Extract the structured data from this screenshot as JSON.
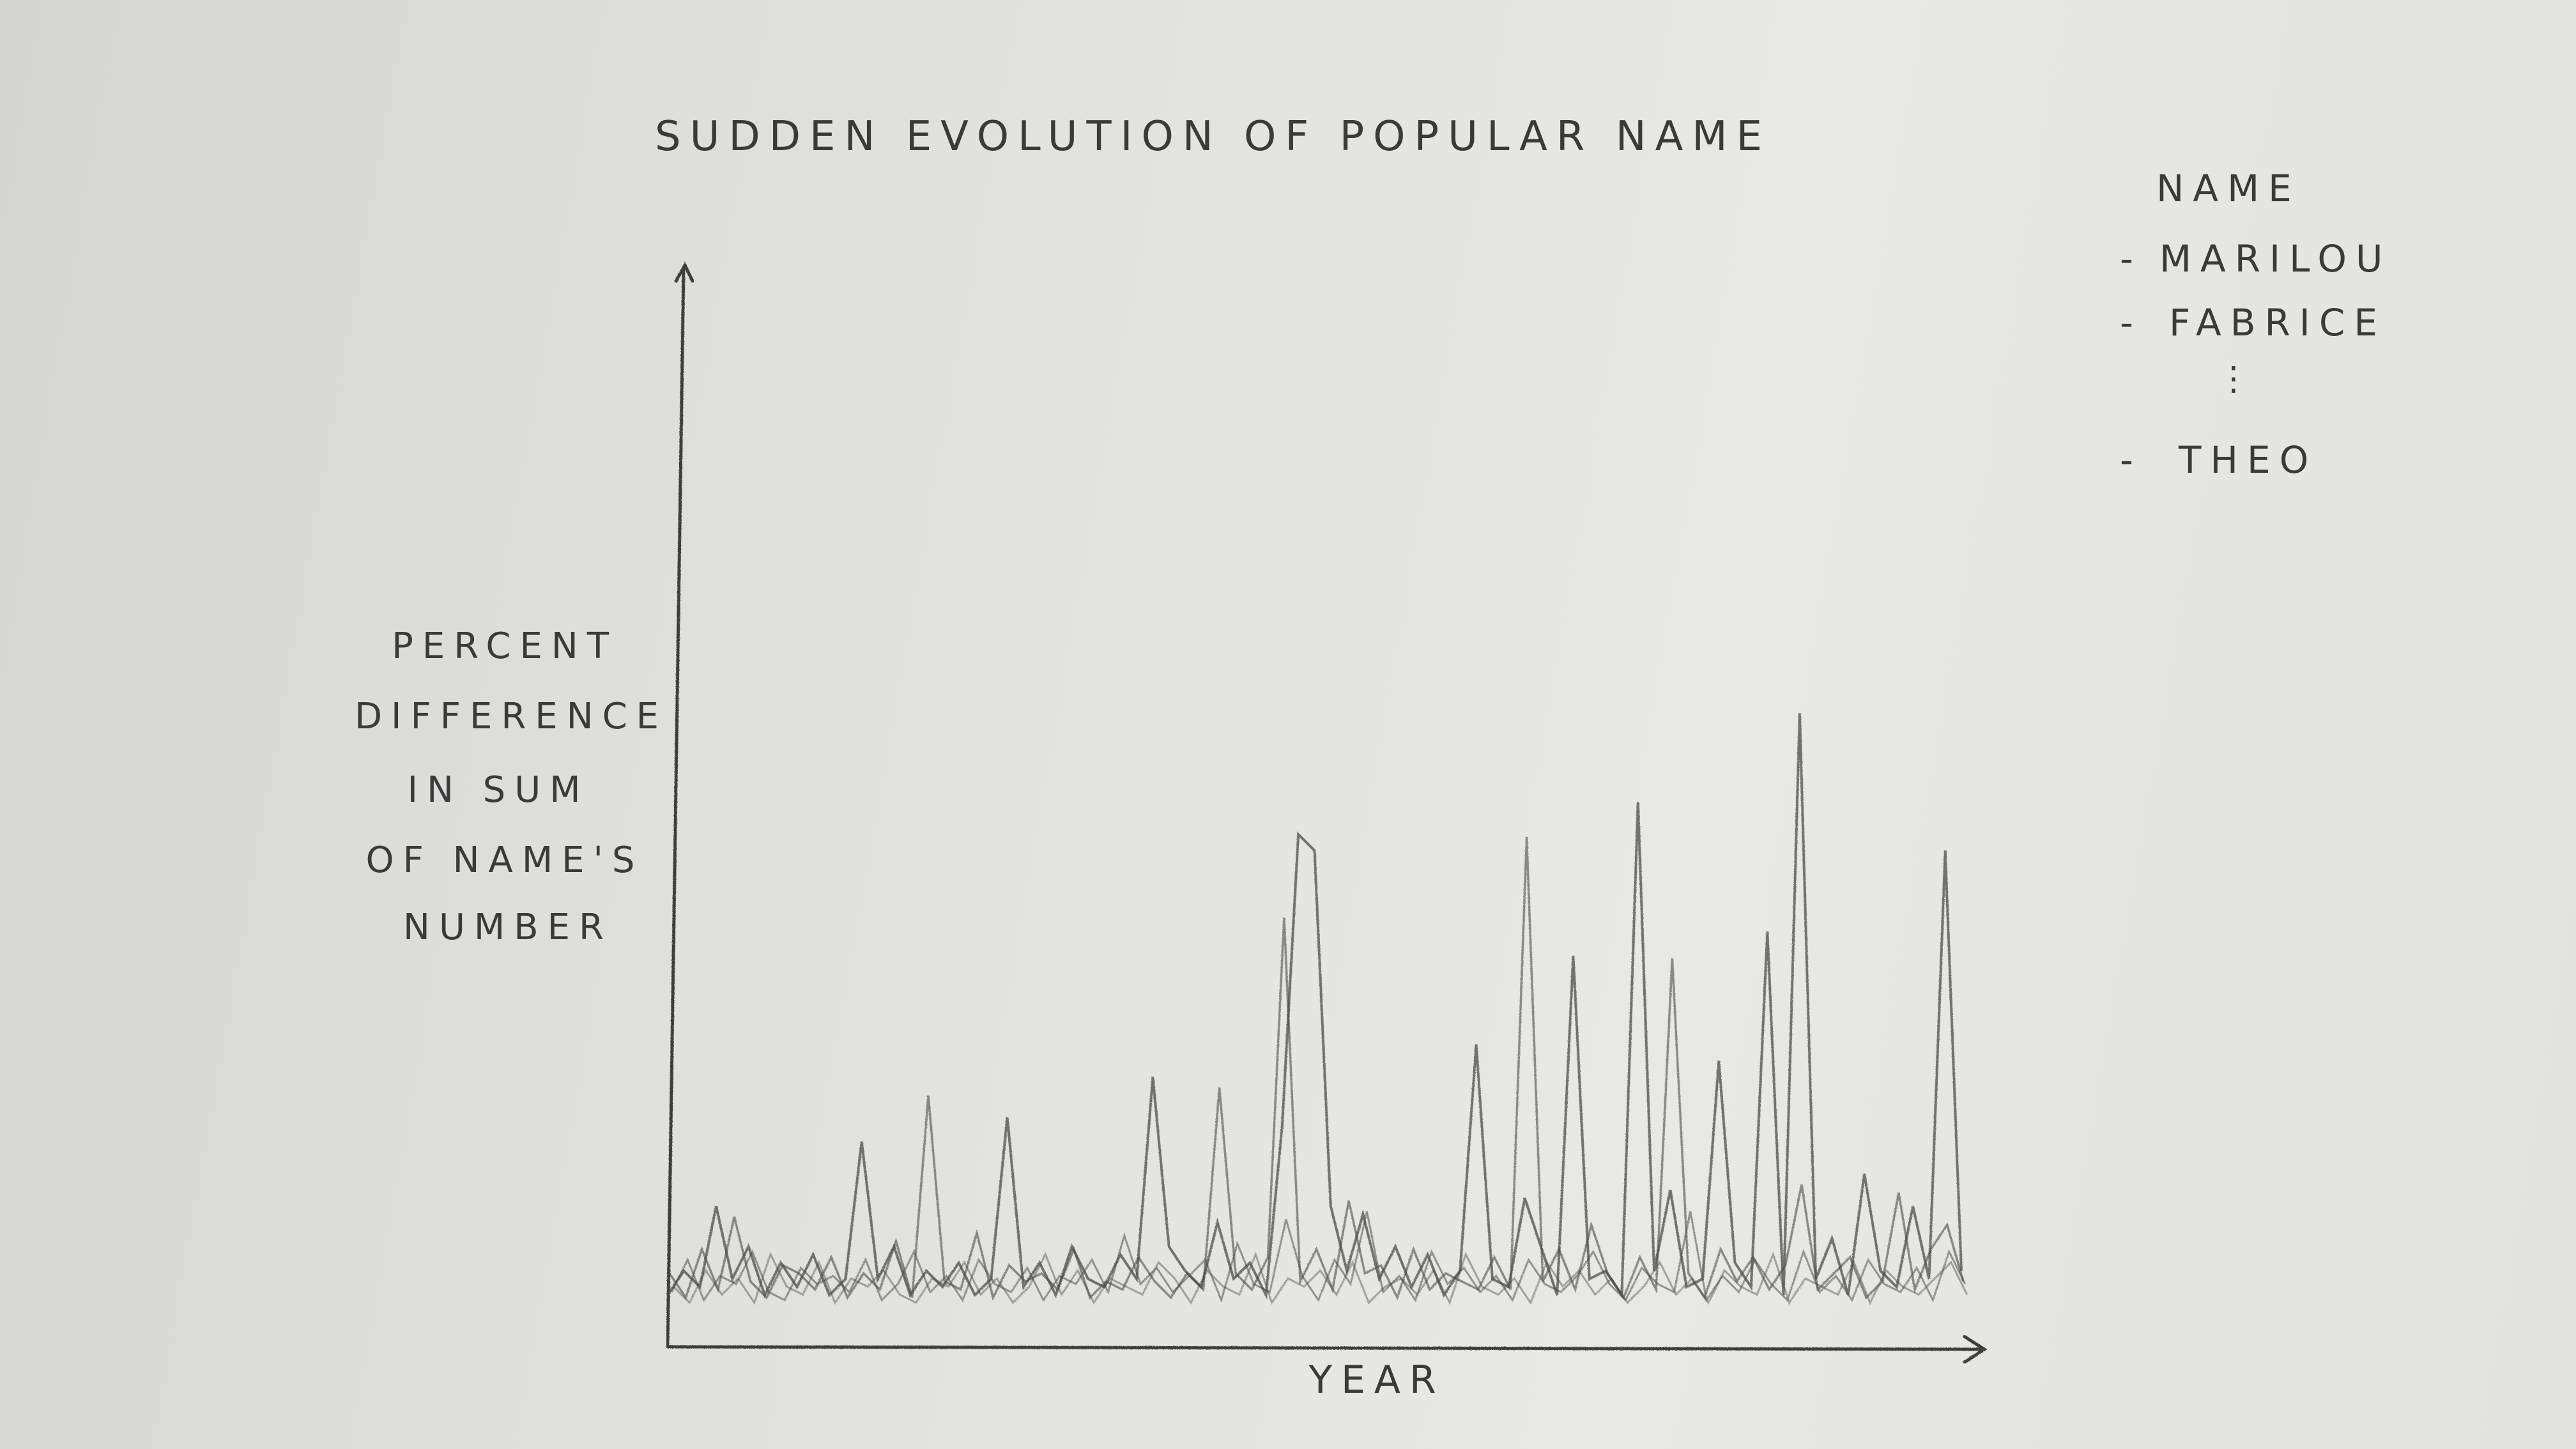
{
  "chart_data": {
    "type": "line",
    "title": "SUDDEN EVOLUTION OF POPULAR NAME",
    "xlabel": "YEAR",
    "ylabel_lines": [
      "PERCENT",
      "DIFFERENCE",
      "IN SUM",
      "OF NAME'S",
      "NUMBER"
    ],
    "legend_title": "NAME",
    "legend_entries": [
      "MARILOU",
      "FABRICE",
      "THEO"
    ],
    "legend_ellipsis": "⋮",
    "legend_position": "top-right",
    "grid": false,
    "ylim": [
      0,
      100
    ],
    "stroke_color": "#4a4a4a",
    "series": [
      {
        "name": "MARILOU",
        "values": [
          3,
          6,
          4,
          14,
          5,
          9,
          3,
          7,
          4,
          8,
          3,
          5,
          22,
          5,
          9,
          3,
          6,
          4,
          7,
          3,
          5,
          25,
          4,
          7,
          3,
          9,
          5,
          4,
          8,
          5,
          30,
          9,
          6,
          4,
          12,
          5,
          7,
          3,
          24,
          60,
          58,
          14,
          6,
          13,
          5,
          9,
          4,
          8,
          3,
          6,
          34,
          5,
          4,
          15,
          9,
          3,
          45,
          5,
          6,
          3,
          64,
          6,
          16,
          4,
          5,
          32,
          7,
          4,
          48,
          3,
          75,
          5,
          10,
          3,
          18,
          6,
          4,
          14,
          5,
          58,
          6
        ]
      },
      {
        "name": "FABRICE",
        "values": [
          6,
          3,
          9,
          4,
          13,
          5,
          3,
          7,
          6,
          4,
          8,
          3,
          6,
          4,
          10,
          3,
          28,
          5,
          4,
          11,
          3,
          7,
          5,
          6,
          4,
          9,
          3,
          5,
          4,
          8,
          5,
          3,
          6,
          4,
          29,
          6,
          4,
          8,
          50,
          5,
          9,
          4,
          15,
          6,
          7,
          3,
          9,
          4,
          6,
          5,
          4,
          8,
          4,
          60,
          5,
          9,
          4,
          12,
          6,
          3,
          8,
          4,
          45,
          6,
          3,
          9,
          5,
          8,
          4,
          7,
          17,
          4,
          6,
          8,
          3,
          5,
          16,
          4,
          9,
          12,
          5
        ]
      },
      {
        "name": "THEO",
        "values": [
          4,
          8,
          3,
          6,
          5,
          9,
          4,
          3,
          7,
          5,
          6,
          4,
          8,
          3,
          5,
          9,
          4,
          6,
          3,
          8,
          5,
          4,
          7,
          3,
          6,
          5,
          8,
          4,
          11,
          5,
          7,
          4,
          6,
          8,
          3,
          10,
          5,
          4,
          13,
          6,
          3,
          8,
          5,
          14,
          4,
          6,
          3,
          9,
          5,
          7,
          4,
          6,
          3,
          8,
          5,
          4,
          6,
          9,
          5,
          3,
          7,
          5,
          4,
          14,
          3,
          6,
          4,
          8,
          5,
          3,
          9,
          4,
          6,
          3,
          8,
          5,
          4,
          7,
          3,
          9,
          5
        ]
      },
      {
        "name": "",
        "values": [
          5,
          3,
          7,
          4,
          6,
          3,
          9,
          5,
          4,
          8,
          3,
          6,
          5,
          7,
          4,
          3,
          6,
          5,
          8,
          4,
          6,
          3,
          5,
          9,
          4,
          7,
          3,
          6,
          5,
          4,
          8,
          6,
          3,
          7,
          5,
          4,
          9,
          3,
          6,
          5,
          7,
          4,
          8,
          3,
          5,
          6,
          4,
          7,
          3,
          9,
          5,
          4,
          6,
          3,
          8,
          5,
          7,
          4,
          6,
          3,
          5,
          8,
          4,
          6,
          3,
          7,
          5,
          4,
          9,
          3,
          6,
          5,
          4,
          8,
          3,
          7,
          5,
          4,
          6,
          8,
          4
        ]
      }
    ]
  }
}
